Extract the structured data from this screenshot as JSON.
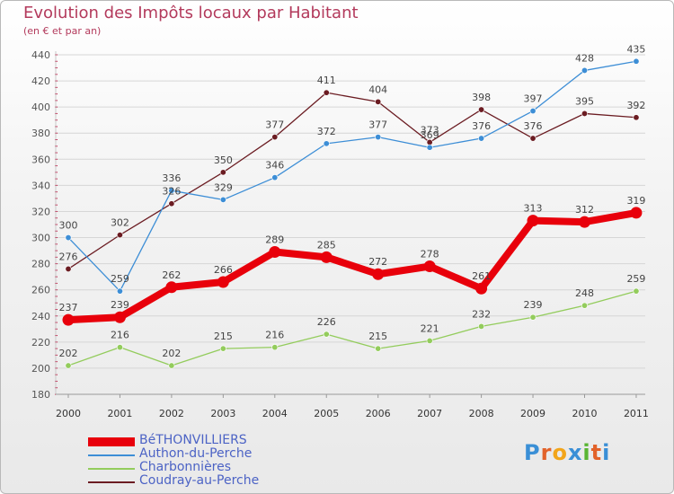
{
  "title": "Evolution des Impôts locaux par Habitant",
  "subtitle": "(en € et par an)",
  "logo": {
    "text": "Proxiti",
    "colors": [
      "#3a8fd6",
      "#e2622a",
      "#f2a51a",
      "#3a8fd6",
      "#59b533",
      "#e2622a",
      "#3a8fd6"
    ]
  },
  "chart_data": {
    "type": "line",
    "x": [
      "2000",
      "2001",
      "2002",
      "2003",
      "2004",
      "2005",
      "2006",
      "2007",
      "2008",
      "2009",
      "2010",
      "2011"
    ],
    "ylim": [
      180,
      440
    ],
    "yticks": [
      180,
      200,
      220,
      240,
      260,
      280,
      300,
      320,
      340,
      360,
      380,
      400,
      420,
      440
    ],
    "grid": "horizontal",
    "legend_position": "bottom-left",
    "series": [
      {
        "name": "BéTHONVILLIERS",
        "color": "#e8000b",
        "values": [
          237,
          239,
          262,
          266,
          289,
          285,
          272,
          278,
          261,
          313,
          312,
          319
        ]
      },
      {
        "name": "Authon-du-Perche",
        "color": "#3d8ed6",
        "values": [
          300,
          259,
          336,
          329,
          346,
          372,
          377,
          369,
          376,
          397,
          428,
          435
        ]
      },
      {
        "name": "Charbonnières",
        "color": "#93cc5c",
        "values": [
          202,
          216,
          202,
          215,
          216,
          226,
          215,
          221,
          232,
          239,
          248,
          259
        ]
      },
      {
        "name": "Coudray-au-Perche",
        "color": "#6b1c22",
        "values": [
          276,
          302,
          326,
          350,
          377,
          411,
          404,
          373,
          398,
          376,
          395,
          392
        ]
      }
    ]
  }
}
